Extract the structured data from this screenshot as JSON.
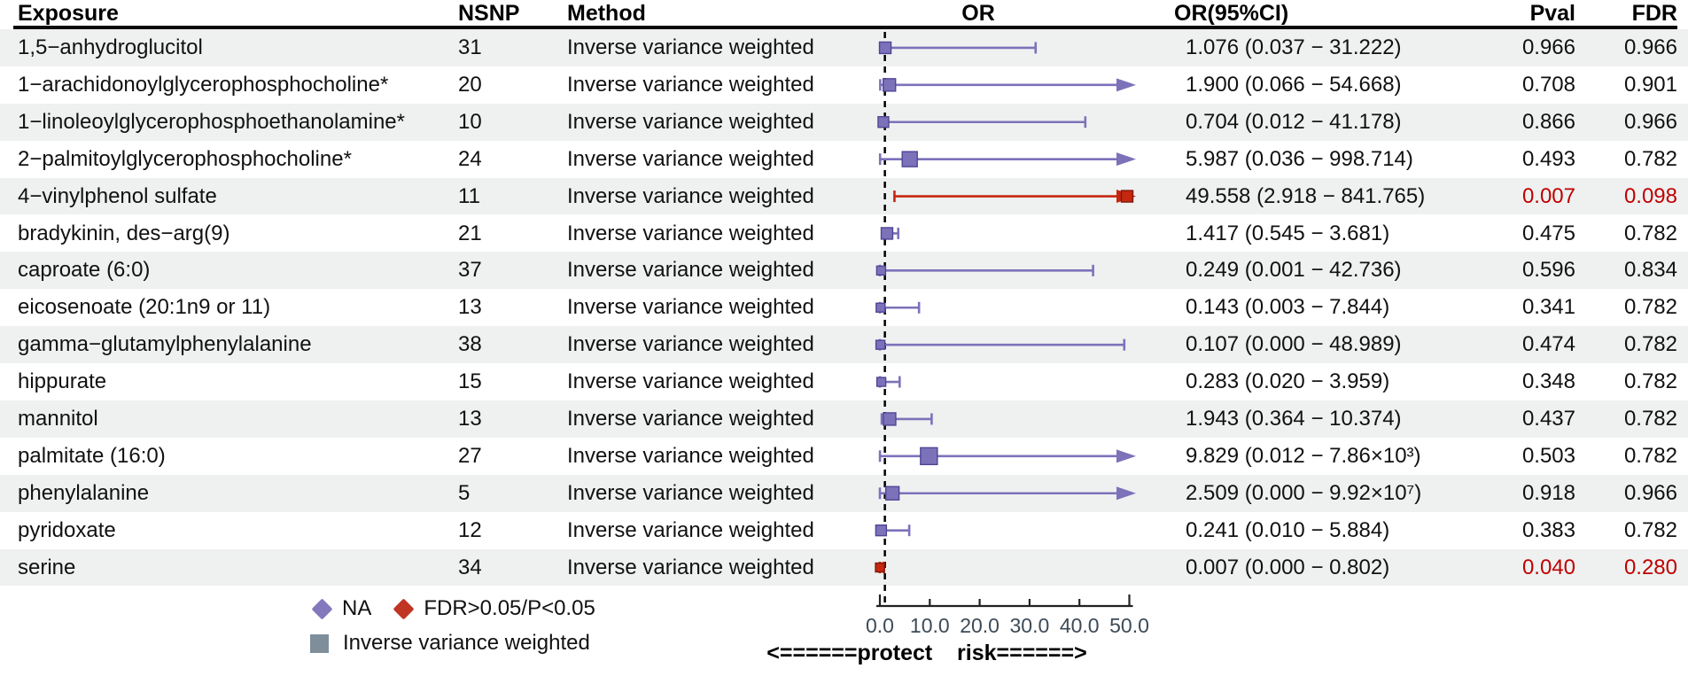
{
  "header": {
    "exposure": "Exposure",
    "nsnp": "NSNP",
    "method": "Method",
    "or_plot": "OR",
    "or_ci": "OR(95%CI)",
    "pval": "Pval",
    "fdr": "FDR"
  },
  "legend": {
    "na_label": "NA",
    "sig_label": "FDR>0.05/P<0.05",
    "ivw_label": "Inverse variance weighted"
  },
  "footer": {
    "protect_risk": "<======protect    risk======>"
  },
  "colors": {
    "row_alt_bg": "#eef1f0",
    "text": "#111111",
    "sig_text": "#c00000",
    "purple": "#7c72ba",
    "purple_dark": "#4f4694",
    "legend_purple": "#8478bd",
    "red": "#c5270f",
    "red_dark": "#7e1a0c",
    "legend_red": "#c03524",
    "ivw_gray": "#7e8e9b",
    "axis_text": "#3d4a57",
    "reference_line": "#000000"
  },
  "chart_data": {
    "type": "forest",
    "x_label": "OR",
    "x_range": [
      0,
      50
    ],
    "x_ticks": [
      0,
      10,
      20,
      30,
      40,
      50
    ],
    "x_tick_labels": [
      "0.0",
      "10.0",
      "20.0",
      "30.0",
      "40.0",
      "50.0"
    ],
    "reference_value": 1,
    "direction_note": "<======protect    risk======>",
    "rows": [
      {
        "exposure": "1,5−anhydroglucitol",
        "nsnp": "31",
        "method": "Inverse variance weighted",
        "or": 1.076,
        "lo": 0.037,
        "hi": 31.222,
        "or_ci": "1.076 (0.037 − 31.222)",
        "pval": "0.966",
        "fdr": "0.966",
        "sig": false,
        "ms": 13
      },
      {
        "exposure": "1−arachidonoylglycerophosphocholine*",
        "nsnp": "20",
        "method": "Inverse variance weighted",
        "or": 1.9,
        "lo": 0.066,
        "hi": 54.668,
        "or_ci": "1.900 (0.066 − 54.668)",
        "pval": "0.708",
        "fdr": "0.901",
        "sig": false,
        "ms": 14
      },
      {
        "exposure": "1−linoleoylglycerophosphoethanolamine*",
        "nsnp": "10",
        "method": "Inverse variance weighted",
        "or": 0.704,
        "lo": 0.012,
        "hi": 41.178,
        "or_ci": "0.704 (0.012 − 41.178)",
        "pval": "0.866",
        "fdr": "0.966",
        "sig": false,
        "ms": 12
      },
      {
        "exposure": "2−palmitoylglycerophosphocholine*",
        "nsnp": "24",
        "method": "Inverse variance weighted",
        "or": 5.987,
        "lo": 0.036,
        "hi": 998.714,
        "or_ci": "5.987 (0.036 − 998.714)",
        "pval": "0.493",
        "fdr": "0.782",
        "sig": false,
        "ms": 17
      },
      {
        "exposure": "4−vinylphenol sulfate",
        "nsnp": "11",
        "method": "Inverse variance weighted",
        "or": 49.558,
        "lo": 2.918,
        "hi": 841.765,
        "or_ci": "49.558 (2.918 − 841.765)",
        "pval": "0.007",
        "fdr": "0.098",
        "sig": true,
        "ms": 13
      },
      {
        "exposure": "bradykinin, des−arg(9)",
        "nsnp": "21",
        "method": "Inverse variance weighted",
        "or": 1.417,
        "lo": 0.545,
        "hi": 3.681,
        "or_ci": "1.417 (0.545 − 3.681)",
        "pval": "0.475",
        "fdr": "0.782",
        "sig": false,
        "ms": 13
      },
      {
        "exposure": "caproate (6:0)",
        "nsnp": "37",
        "method": "Inverse variance weighted",
        "or": 0.249,
        "lo": 0.001,
        "hi": 42.736,
        "or_ci": "0.249 (0.001 − 42.736)",
        "pval": "0.596",
        "fdr": "0.834",
        "sig": false,
        "ms": 10
      },
      {
        "exposure": "eicosenoate (20:1n9 or 11)",
        "nsnp": "13",
        "method": "Inverse variance weighted",
        "or": 0.143,
        "lo": 0.003,
        "hi": 7.844,
        "or_ci": "0.143 (0.003 − 7.844)",
        "pval": "0.341",
        "fdr": "0.782",
        "sig": false,
        "ms": 10
      },
      {
        "exposure": "gamma−glutamylphenylalanine",
        "nsnp": "38",
        "method": "Inverse variance weighted",
        "or": 0.107,
        "lo": 0.0,
        "hi": 48.989,
        "or_ci": "0.107 (0.000 − 48.989)",
        "pval": "0.474",
        "fdr": "0.782",
        "sig": false,
        "ms": 10
      },
      {
        "exposure": "hippurate",
        "nsnp": "15",
        "method": "Inverse variance weighted",
        "or": 0.283,
        "lo": 0.02,
        "hi": 3.959,
        "or_ci": "0.283 (0.020 − 3.959)",
        "pval": "0.348",
        "fdr": "0.782",
        "sig": false,
        "ms": 10
      },
      {
        "exposure": "mannitol",
        "nsnp": "13",
        "method": "Inverse variance weighted",
        "or": 1.943,
        "lo": 0.364,
        "hi": 10.374,
        "or_ci": "1.943 (0.364 − 10.374)",
        "pval": "0.437",
        "fdr": "0.782",
        "sig": false,
        "ms": 14
      },
      {
        "exposure": "palmitate (16:0)",
        "nsnp": "27",
        "method": "Inverse variance weighted",
        "or": 9.829,
        "lo": 0.012,
        "hi": 7860,
        "or_ci": "9.829 (0.012 − 7.86×10³)",
        "pval": "0.503",
        "fdr": "0.782",
        "sig": false,
        "ms": 19
      },
      {
        "exposure": "phenylalanine",
        "nsnp": "5",
        "method": "Inverse variance weighted",
        "or": 2.509,
        "lo": 0.0,
        "hi": 99200000,
        "or_ci": "2.509 (0.000 − 9.92×10⁷)",
        "pval": "0.918",
        "fdr": "0.966",
        "sig": false,
        "ms": 15
      },
      {
        "exposure": "pyridoxate",
        "nsnp": "12",
        "method": "Inverse variance weighted",
        "or": 0.241,
        "lo": 0.01,
        "hi": 5.884,
        "or_ci": "0.241 (0.010 − 5.884)",
        "pval": "0.383",
        "fdr": "0.782",
        "sig": false,
        "ms": 12
      },
      {
        "exposure": "serine",
        "nsnp": "34",
        "method": "Inverse variance weighted",
        "or": 0.007,
        "lo": 0.0,
        "hi": 0.802,
        "or_ci": "0.007 (0.000 − 0.802)",
        "pval": "0.040",
        "fdr": "0.280",
        "sig": true,
        "ms": 10
      }
    ]
  }
}
